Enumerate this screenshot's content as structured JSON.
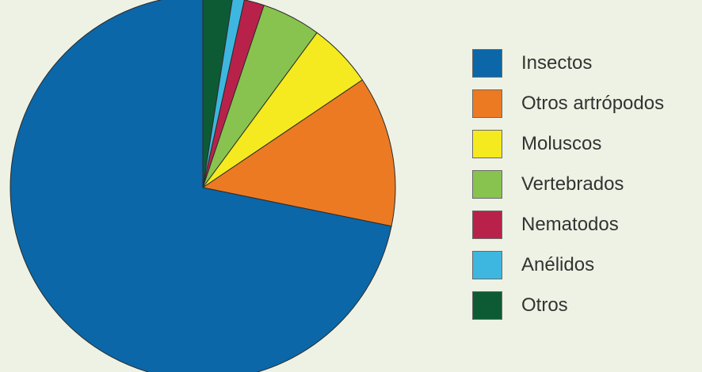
{
  "chart_data": {
    "type": "pie",
    "title": "",
    "legend_position": "right",
    "start": "top",
    "direction": "clockwise",
    "categories": [
      "Insectos",
      "Otros artrópodos",
      "Moluscos",
      "Vertebrados",
      "Nematodos",
      "Anélidos",
      "Otros"
    ],
    "values": [
      72.5,
      12.8,
      5.5,
      5.0,
      1.7,
      1.0,
      2.5
    ],
    "colors": [
      "#0b67a8",
      "#ec7a23",
      "#f4ea1f",
      "#88c34f",
      "#b8224a",
      "#3db7df",
      "#0d5b35"
    ]
  }
}
